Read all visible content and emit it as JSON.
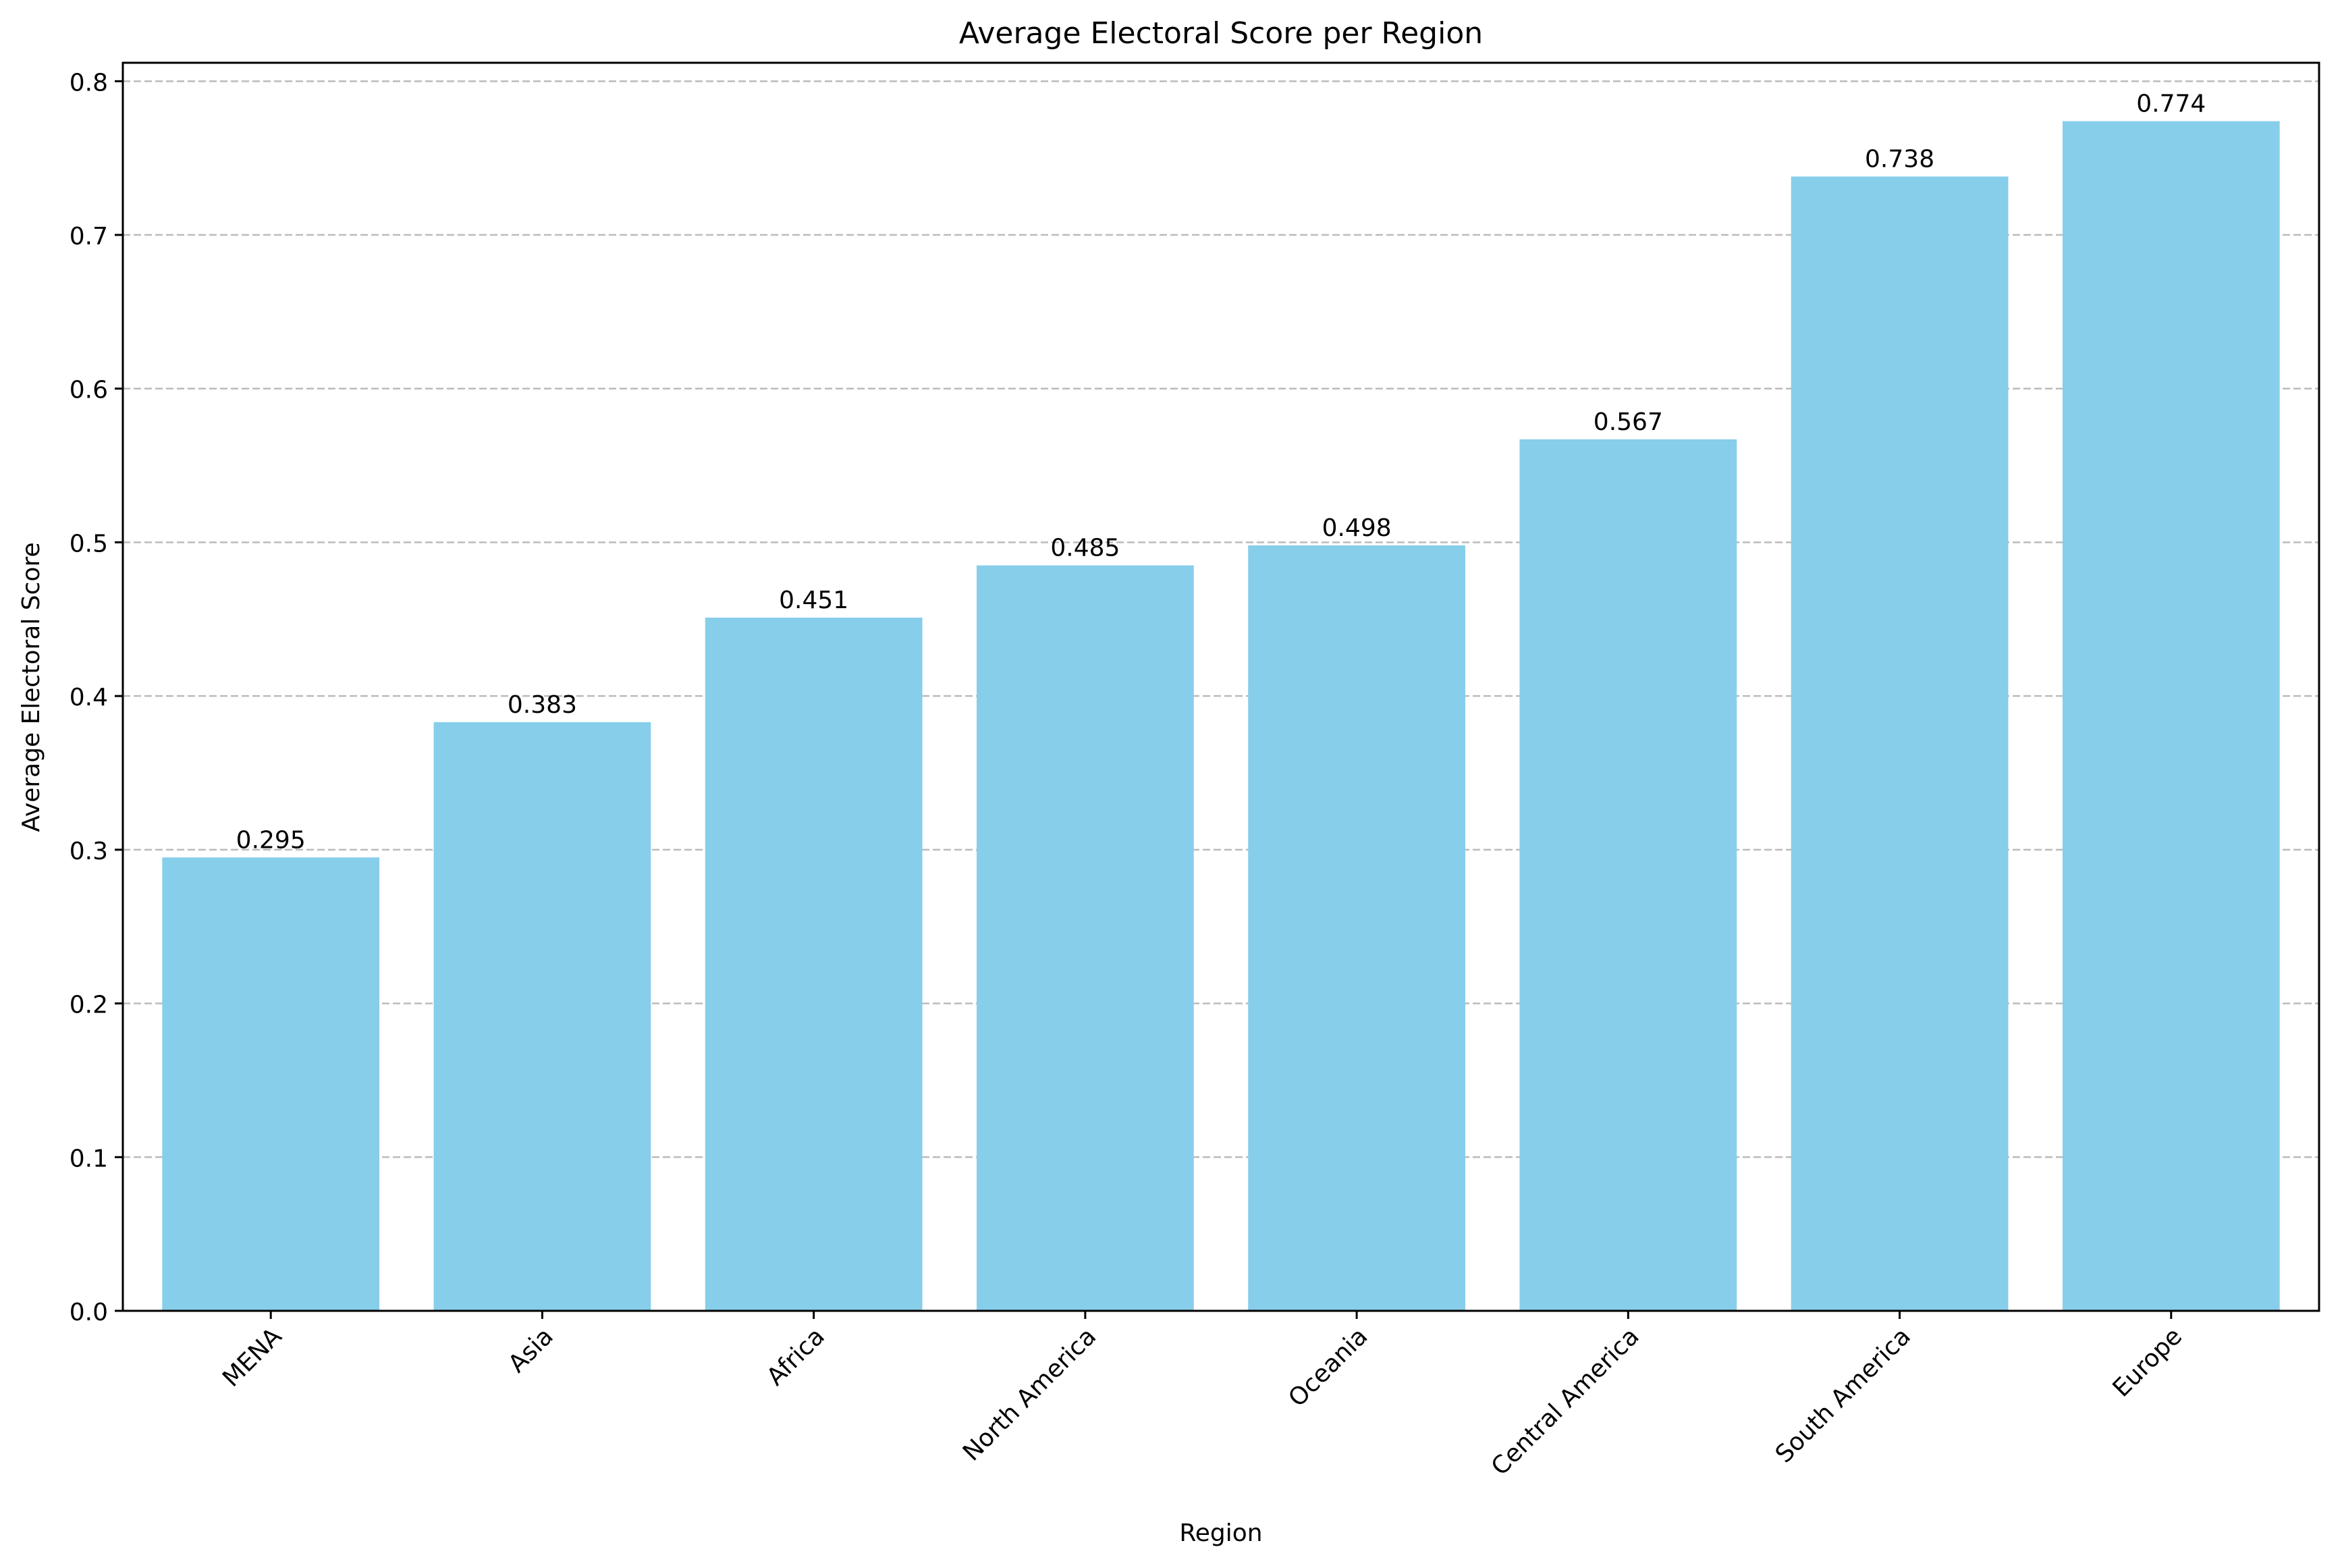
{
  "chart_data": {
    "type": "bar",
    "title": "Average Electoral Score per Region",
    "xlabel": "Region",
    "ylabel": "Average Electoral Score",
    "categories": [
      "MENA",
      "Asia",
      "Africa",
      "North America",
      "Oceania",
      "Central America",
      "South America",
      "Europe"
    ],
    "values": [
      0.295,
      0.383,
      0.451,
      0.485,
      0.498,
      0.567,
      0.738,
      0.774
    ],
    "value_labels": [
      "0.295",
      "0.383",
      "0.451",
      "0.485",
      "0.498",
      "0.567",
      "0.738",
      "0.774"
    ],
    "ylim": [
      0,
      0.812
    ],
    "yticks": [
      0.0,
      0.1,
      0.2,
      0.3,
      0.4,
      0.5,
      0.6,
      0.7,
      0.8
    ],
    "ytick_labels": [
      "0.0",
      "0.1",
      "0.2",
      "0.3",
      "0.4",
      "0.5",
      "0.6",
      "0.7",
      "0.8"
    ],
    "grid": "y-dashed",
    "bar_color": "#87ceeb",
    "grid_color": "#b0b0b0"
  }
}
